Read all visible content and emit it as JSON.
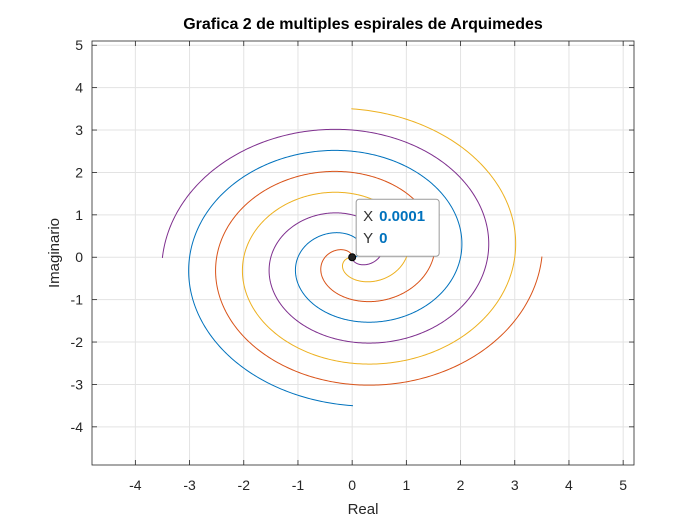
{
  "chart_data": {
    "type": "line",
    "title": "Grafica 2 de multiples espirales de Arquimedes",
    "xlabel": "Real",
    "ylabel": "Imaginario",
    "xlim": [
      -4.8,
      5.2
    ],
    "ylim": [
      -4.9,
      5.1
    ],
    "xticks": [
      -4,
      -3,
      -2,
      -1,
      0,
      1,
      2,
      3,
      4,
      5
    ],
    "yticks": [
      -4,
      -3,
      -2,
      -1,
      0,
      1,
      2,
      3,
      4,
      5
    ],
    "xtick_labels": [
      "-4",
      "-3",
      "-2",
      "-1",
      "0",
      "1",
      "2",
      "3",
      "4",
      "5"
    ],
    "ytick_labels": [
      "-4",
      "-3",
      "-2",
      "-1",
      "0",
      "1",
      "2",
      "3",
      "4",
      "5"
    ],
    "grid": true,
    "series": [
      {
        "color": "#0072BD",
        "rotation_deg": 0,
        "t_range": [
          0,
          11
        ],
        "note_formula": "r = t/pi"
      },
      {
        "color": "#D95319",
        "rotation_deg": 90,
        "t_range": [
          0,
          11
        ]
      },
      {
        "color": "#EDB120",
        "rotation_deg": 180,
        "t_range": [
          0,
          11
        ]
      },
      {
        "color": "#7E2F8E",
        "rotation_deg": 270,
        "t_range": [
          0,
          11
        ]
      }
    ],
    "datatip": {
      "x": 0.0001,
      "y": 0,
      "x_label": "X",
      "y_label": "Y",
      "x_text": "0.0001",
      "y_text": "0"
    }
  }
}
